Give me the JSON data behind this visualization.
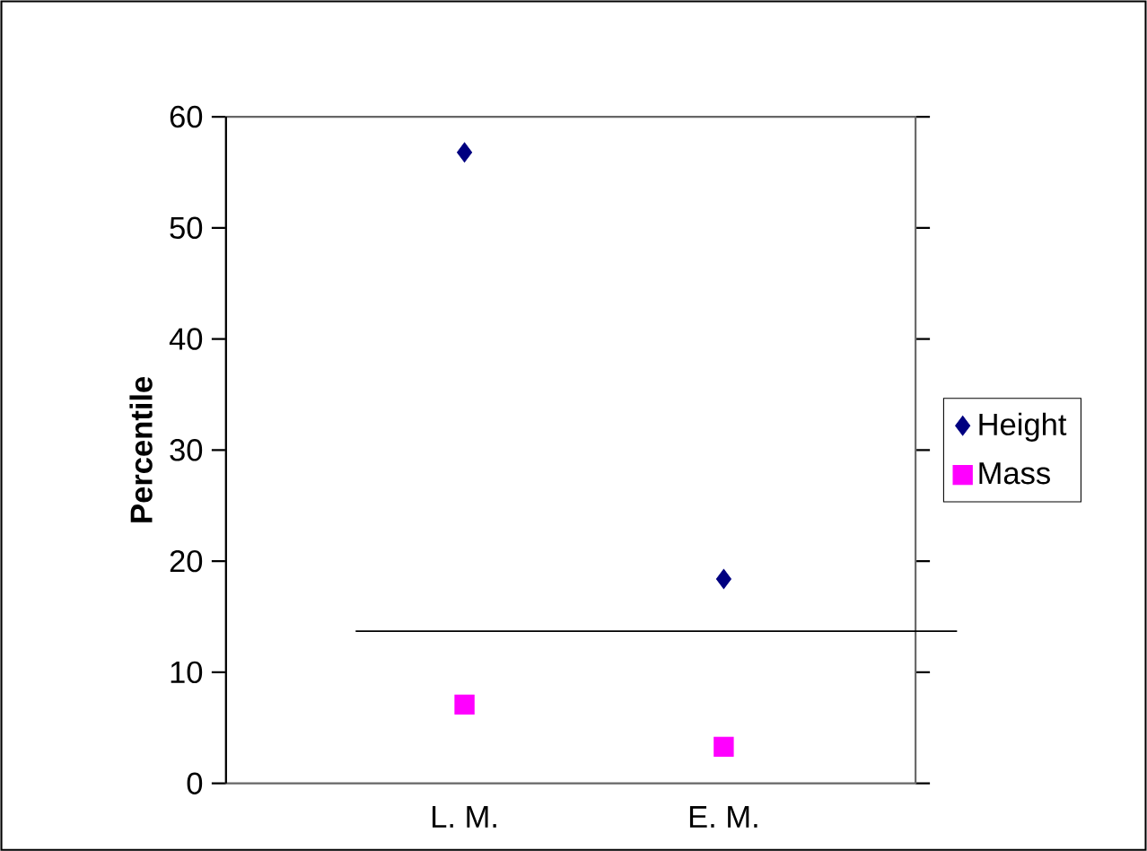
{
  "chart_data": {
    "type": "scatter",
    "ylabel": "Percentile",
    "categories": [
      "L. M.",
      "E. M."
    ],
    "series": [
      {
        "name": "Height",
        "color": "#000080",
        "marker": "diamond",
        "values": [
          56.8,
          18.4
        ]
      },
      {
        "name": "Mass",
        "color": "#ff00ff",
        "marker": "square",
        "values": [
          7.1,
          3.3
        ]
      }
    ],
    "ylim": [
      0,
      60
    ],
    "yticks": [
      0,
      10,
      20,
      30,
      40,
      50,
      60
    ],
    "legend": "right",
    "ref_lines": [
      {
        "axis": "y",
        "value": 13.7,
        "color": "#000000"
      }
    ]
  }
}
